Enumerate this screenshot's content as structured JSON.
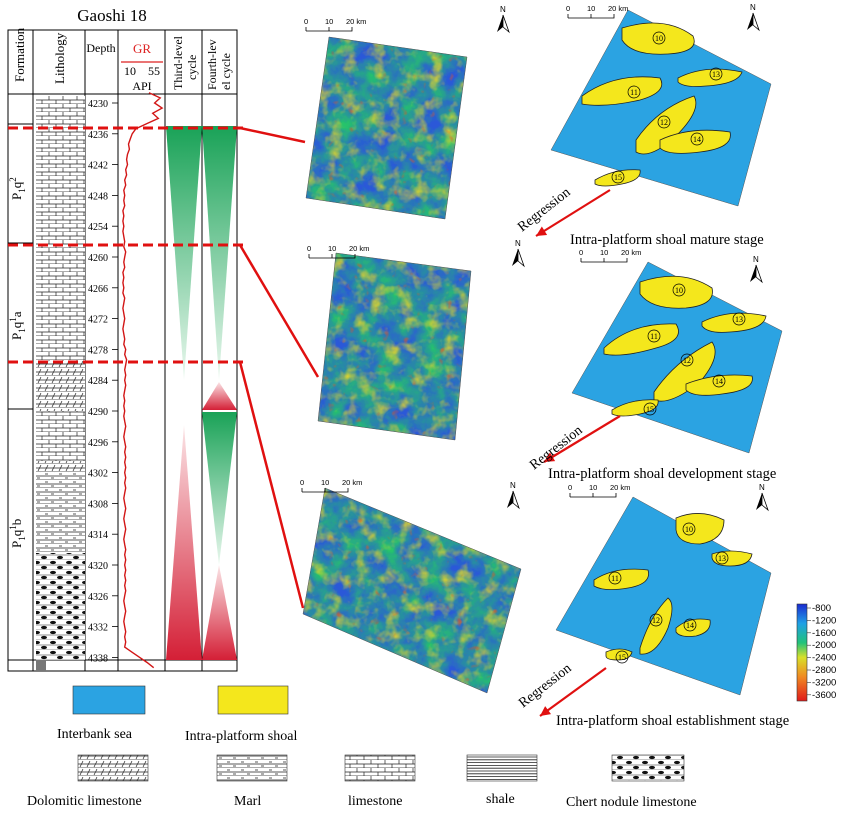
{
  "well": {
    "title": "Gaoshi 18",
    "headers": {
      "formation": "Formation",
      "lithology": "Lithology",
      "depth": "Depth",
      "gr": "GR",
      "gr_min": "10",
      "gr_max": "55",
      "gr_unit": "API",
      "third": "Third-level cycle",
      "fourth": "Fourth-level cycle"
    },
    "depth_ticks": [
      "4230",
      "4236",
      "4242",
      "4248",
      "4254",
      "4260",
      "4266",
      "4272",
      "4278",
      "4284",
      "4290",
      "4296",
      "4302",
      "4308",
      "4314",
      "4320",
      "4326",
      "4332",
      "4338"
    ],
    "formations": [
      {
        "label": "P1q2",
        "base": "P",
        "sub": "1",
        "mid": "q",
        "sup": "2",
        "suffix": ""
      },
      {
        "label": "P1q1a",
        "base": "P",
        "sub": "1",
        "mid": "q",
        "sup": "1",
        "suffix": "a"
      },
      {
        "label": "P1q1b",
        "base": "P",
        "sub": "1",
        "mid": "q",
        "sup": "1",
        "suffix": "b"
      }
    ],
    "gr_curve": [
      [
        4228,
        40
      ],
      [
        4229,
        52
      ],
      [
        4230,
        46
      ],
      [
        4231,
        54
      ],
      [
        4232,
        44
      ],
      [
        4233,
        50
      ],
      [
        4234,
        38
      ],
      [
        4235,
        26
      ],
      [
        4236,
        22
      ],
      [
        4237,
        20
      ],
      [
        4238,
        18
      ],
      [
        4239,
        19
      ],
      [
        4240,
        17
      ],
      [
        4241,
        16
      ],
      [
        4242,
        17
      ],
      [
        4243,
        15
      ],
      [
        4244,
        16
      ],
      [
        4245,
        14
      ],
      [
        4246,
        15
      ],
      [
        4247,
        13
      ],
      [
        4248,
        14
      ],
      [
        4249,
        13
      ],
      [
        4250,
        14
      ],
      [
        4251,
        12
      ],
      [
        4252,
        13
      ],
      [
        4253,
        12
      ],
      [
        4254,
        13
      ],
      [
        4255,
        12
      ],
      [
        4256,
        13
      ],
      [
        4257,
        14
      ],
      [
        4258,
        13
      ],
      [
        4259,
        15
      ],
      [
        4260,
        14
      ],
      [
        4261,
        13
      ],
      [
        4262,
        14
      ],
      [
        4263,
        12
      ],
      [
        4264,
        13
      ],
      [
        4265,
        12
      ],
      [
        4266,
        13
      ],
      [
        4267,
        12
      ],
      [
        4268,
        14
      ],
      [
        4269,
        13
      ],
      [
        4270,
        12
      ],
      [
        4271,
        13
      ],
      [
        4272,
        14
      ],
      [
        4273,
        13
      ],
      [
        4274,
        12
      ],
      [
        4275,
        13
      ],
      [
        4276,
        14
      ],
      [
        4277,
        13
      ],
      [
        4278,
        15
      ],
      [
        4279,
        14
      ],
      [
        4280,
        16
      ],
      [
        4281,
        15
      ],
      [
        4282,
        14
      ],
      [
        4283,
        15
      ],
      [
        4284,
        14
      ],
      [
        4285,
        15
      ],
      [
        4286,
        14
      ],
      [
        4287,
        13
      ],
      [
        4288,
        14
      ],
      [
        4289,
        13
      ],
      [
        4290,
        14
      ],
      [
        4291,
        13
      ],
      [
        4292,
        14
      ],
      [
        4293,
        15
      ],
      [
        4294,
        14
      ],
      [
        4295,
        13
      ],
      [
        4296,
        14
      ],
      [
        4297,
        15
      ],
      [
        4298,
        14
      ],
      [
        4299,
        15
      ],
      [
        4300,
        14
      ],
      [
        4301,
        15
      ],
      [
        4302,
        14
      ],
      [
        4303,
        15
      ],
      [
        4304,
        14
      ],
      [
        4305,
        15
      ],
      [
        4306,
        14
      ],
      [
        4307,
        13
      ],
      [
        4308,
        14
      ],
      [
        4309,
        15
      ],
      [
        4310,
        14
      ],
      [
        4311,
        13
      ],
      [
        4312,
        14
      ],
      [
        4313,
        15
      ],
      [
        4314,
        14
      ],
      [
        4315,
        13
      ],
      [
        4316,
        14
      ],
      [
        4317,
        15
      ],
      [
        4318,
        14
      ],
      [
        4319,
        15
      ],
      [
        4320,
        14
      ],
      [
        4321,
        15
      ],
      [
        4322,
        14
      ],
      [
        4323,
        15
      ],
      [
        4324,
        14
      ],
      [
        4325,
        15
      ],
      [
        4326,
        14
      ],
      [
        4327,
        13
      ],
      [
        4328,
        14
      ],
      [
        4329,
        15
      ],
      [
        4330,
        14
      ],
      [
        4331,
        13
      ],
      [
        4332,
        14
      ],
      [
        4333,
        15
      ],
      [
        4334,
        14
      ],
      [
        4335,
        15
      ],
      [
        4336,
        14
      ],
      [
        4337,
        22
      ],
      [
        4338,
        30
      ],
      [
        4339,
        38
      ],
      [
        4340,
        45
      ]
    ]
  },
  "maps": {
    "scale_labels": [
      "0",
      "10",
      "20 km"
    ],
    "north": "N",
    "stages": [
      "Intra-platform shoal mature stage",
      "Intra-platform shoal development stage",
      "Intra-platform shoal establishment stage"
    ],
    "regression": "Regression",
    "shoal_ids": [
      "10",
      "11",
      "12",
      "13",
      "14",
      "15"
    ],
    "colorbar": [
      "-800",
      "-1200",
      "-1600",
      "-2000",
      "-2400",
      "-2800",
      "-3200",
      "-3600"
    ]
  },
  "legend": {
    "interbank": "Interbank sea",
    "shoal": "Intra-platform shoal",
    "dolomitic": "Dolomitic limestone",
    "marl": "Marl",
    "limestone": "limestone",
    "shale": "shale",
    "chert": "Chert nodule limestone"
  },
  "colors": {
    "sea": "#2ba3e2",
    "shoal": "#f4e71c",
    "red_line": "#e01010",
    "green_cycle": "#1aa55a",
    "red_cycle": "#d9213a"
  }
}
